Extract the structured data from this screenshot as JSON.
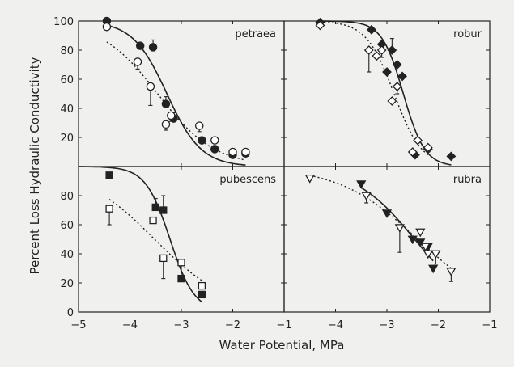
{
  "colors": {
    "background": "#f0f0ef",
    "ink": "#222222"
  },
  "xlabel": "Water Potential, MPa",
  "ylabel": "Percent Loss Hydraulic Conductivity",
  "chart_data": [
    {
      "type": "scatter",
      "panel_label": "petraea",
      "xlim": [
        -5,
        -1
      ],
      "ylim": [
        0,
        100
      ],
      "x_ticks": [
        "-5",
        "-4",
        "-3",
        "-2",
        "-1"
      ],
      "y_ticks": [
        "100",
        "80",
        "60",
        "40",
        "20"
      ],
      "series": [
        {
          "style": "filled-circle",
          "fit": "solid",
          "x": [
            -4.45,
            -3.8,
            -3.55,
            -3.3,
            -3.15,
            -2.6,
            -2.35,
            -2.0,
            -1.75
          ],
          "y": [
            100,
            83,
            82,
            43,
            33,
            18,
            12,
            8,
            9
          ],
          "err": [
            0,
            0,
            5,
            5,
            4,
            0,
            0,
            0,
            0
          ]
        },
        {
          "style": "open-circle",
          "fit": "dotted",
          "x": [
            -4.45,
            -3.85,
            -3.6,
            -3.3,
            -3.2,
            -2.65,
            -2.35,
            -2.0,
            -1.75
          ],
          "y": [
            96,
            72,
            55,
            29,
            35,
            28,
            18,
            10,
            10
          ],
          "err": [
            0,
            5,
            13,
            4,
            4,
            4,
            0,
            0,
            0
          ]
        }
      ]
    },
    {
      "type": "scatter",
      "panel_label": "robur",
      "xlim": [
        -5,
        -1
      ],
      "ylim": [
        0,
        100
      ],
      "x_ticks": [],
      "y_ticks": [],
      "series": [
        {
          "style": "filled-diamond",
          "fit": "solid",
          "x": [
            -4.3,
            -3.3,
            -3.1,
            -3.0,
            -2.9,
            -2.8,
            -2.7,
            -2.45,
            -2.2,
            -1.75
          ],
          "y": [
            99,
            94,
            84,
            65,
            80,
            70,
            62,
            8,
            12,
            7
          ],
          "err": [
            0,
            0,
            0,
            0,
            8,
            0,
            0,
            0,
            0,
            0
          ]
        },
        {
          "style": "open-diamond",
          "fit": "dotted",
          "x": [
            -4.3,
            -3.35,
            -3.2,
            -3.1,
            -2.9,
            -2.8,
            -2.5,
            -2.4,
            -2.2
          ],
          "y": [
            97,
            80,
            76,
            80,
            45,
            55,
            10,
            18,
            13
          ],
          "err": [
            0,
            15,
            0,
            5,
            0,
            5,
            0,
            0,
            3
          ]
        }
      ]
    },
    {
      "type": "scatter",
      "panel_label": "pubescens",
      "xlim": [
        -5,
        -1
      ],
      "ylim": [
        0,
        100
      ],
      "x_ticks": [
        "-5",
        "-4",
        "-3",
        "-2",
        "-1"
      ],
      "y_ticks": [
        "80",
        "60",
        "40",
        "20",
        "0"
      ],
      "series": [
        {
          "style": "filled-square",
          "fit": "solid",
          "x": [
            -4.4,
            -3.5,
            -3.35,
            -3.0,
            -2.6
          ],
          "y": [
            94,
            72,
            70,
            23,
            12
          ],
          "err": [
            0,
            6,
            10,
            0,
            0
          ]
        },
        {
          "style": "open-square",
          "fit": "dotted",
          "x": [
            -4.4,
            -3.55,
            -3.35,
            -3.0,
            -2.6
          ],
          "y": [
            71,
            63,
            37,
            34,
            18
          ],
          "err": [
            11,
            0,
            14,
            10,
            0
          ]
        }
      ]
    },
    {
      "type": "scatter",
      "panel_label": "rubra",
      "xlim": [
        -5,
        -1
      ],
      "ylim": [
        0,
        100
      ],
      "x_ticks": [
        "-4",
        "-3",
        "-2",
        "-1"
      ],
      "y_ticks": [],
      "series": [
        {
          "style": "filled-triangle",
          "fit": "solid",
          "x": [
            -3.5,
            -3.0,
            -2.5,
            -2.35,
            -2.2,
            -2.1
          ],
          "y": [
            88,
            68,
            50,
            48,
            45,
            30
          ],
          "err": [
            0,
            0,
            0,
            0,
            0,
            0
          ]
        },
        {
          "style": "open-triangle",
          "fit": "dotted",
          "x": [
            -4.5,
            -3.4,
            -2.75,
            -2.35,
            -2.25,
            -2.2,
            -2.05,
            -1.75
          ],
          "y": [
            92,
            80,
            58,
            55,
            45,
            40,
            40,
            28
          ],
          "err": [
            0,
            5,
            17,
            0,
            0,
            0,
            7,
            7
          ]
        }
      ]
    }
  ]
}
